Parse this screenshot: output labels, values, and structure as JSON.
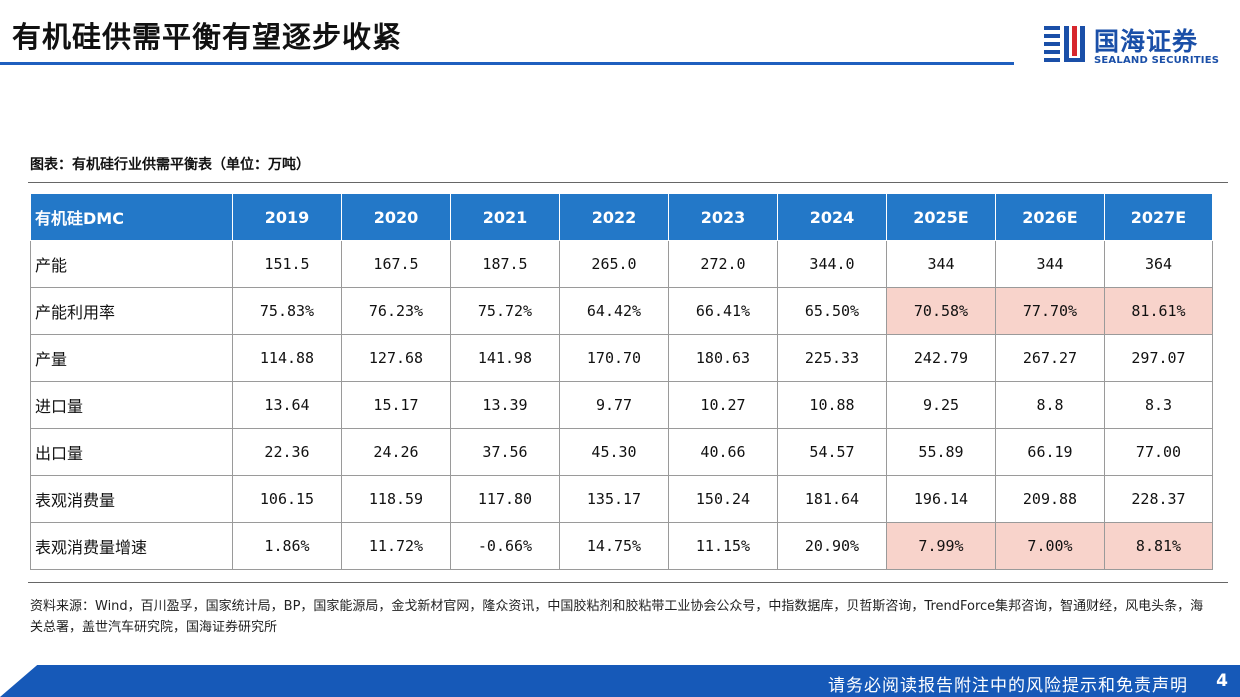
{
  "header": {
    "title": "有机硅供需平衡有望逐步收紧",
    "logo_cn": "国海证券",
    "logo_en": "SEALAND SECURITIES"
  },
  "caption": "图表：有机硅行业供需平衡表（单位：万吨）",
  "table": {
    "corner": "有机硅DMC",
    "years": [
      "2019",
      "2020",
      "2021",
      "2022",
      "2023",
      "2024",
      "2025E",
      "2026E",
      "2027E"
    ],
    "rows": [
      {
        "label": "产能",
        "values": [
          "151.5",
          "167.5",
          "187.5",
          "265.0",
          "272.0",
          "344.0",
          "344",
          "344",
          "364"
        ],
        "highlight": [
          false,
          false,
          false,
          false,
          false,
          false,
          false,
          false,
          false
        ]
      },
      {
        "label": "产能利用率",
        "values": [
          "75.83%",
          "76.23%",
          "75.72%",
          "64.42%",
          "66.41%",
          "65.50%",
          "70.58%",
          "77.70%",
          "81.61%"
        ],
        "highlight": [
          false,
          false,
          false,
          false,
          false,
          false,
          true,
          true,
          true
        ]
      },
      {
        "label": "产量",
        "values": [
          "114.88",
          "127.68",
          "141.98",
          "170.70",
          "180.63",
          "225.33",
          "242.79",
          "267.27",
          "297.07"
        ],
        "highlight": [
          false,
          false,
          false,
          false,
          false,
          false,
          false,
          false,
          false
        ]
      },
      {
        "label": "进口量",
        "values": [
          "13.64",
          "15.17",
          "13.39",
          "9.77",
          "10.27",
          "10.88",
          "9.25",
          "8.8",
          "8.3"
        ],
        "highlight": [
          false,
          false,
          false,
          false,
          false,
          false,
          false,
          false,
          false
        ]
      },
      {
        "label": "出口量",
        "values": [
          "22.36",
          "24.26",
          "37.56",
          "45.30",
          "40.66",
          "54.57",
          "55.89",
          "66.19",
          "77.00"
        ],
        "highlight": [
          false,
          false,
          false,
          false,
          false,
          false,
          false,
          false,
          false
        ]
      },
      {
        "label": "表观消费量",
        "values": [
          "106.15",
          "118.59",
          "117.80",
          "135.17",
          "150.24",
          "181.64",
          "196.14",
          "209.88",
          "228.37"
        ],
        "highlight": [
          false,
          false,
          false,
          false,
          false,
          false,
          false,
          false,
          false
        ]
      },
      {
        "label": "表观消费量增速",
        "values": [
          "1.86%",
          "11.72%",
          "-0.66%",
          "14.75%",
          "11.15%",
          "20.90%",
          "7.99%",
          "7.00%",
          "8.81%"
        ],
        "highlight": [
          false,
          false,
          false,
          false,
          false,
          false,
          true,
          true,
          true
        ]
      }
    ],
    "highlight_color": "#f8d3cb",
    "header_color": "#2378c8"
  },
  "source": "资料来源：Wind，百川盈孚，国家统计局，BP，国家能源局，金戈新材官网，隆众资讯，中国胶粘剂和胶粘带工业协会公众号，中指数据库，贝哲斯咨询，TrendForce集邦咨询，智通财经，风电头条，海关总署，盖世汽车研究院，国海证券研究所",
  "footer": {
    "disclaimer": "请务必阅读报告附注中的风险提示和免责声明",
    "page_number": "4"
  },
  "colors": {
    "brand_blue": "#1a4fa8",
    "title_rule": "#1f5fbf",
    "footer_bar": "#1659b8",
    "logo_red": "#d7262d"
  }
}
